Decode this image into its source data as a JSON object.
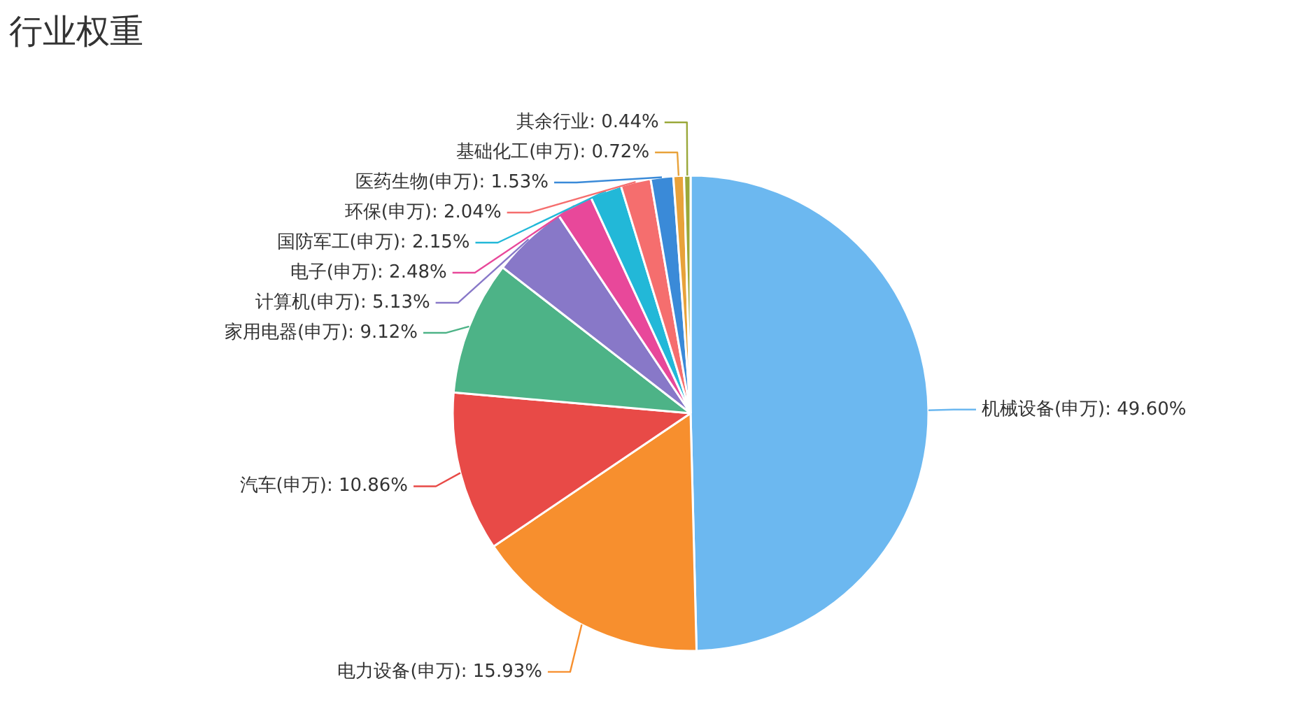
{
  "chart_data": {
    "type": "pie",
    "title": "行业权重",
    "categories": [
      "机械设备(申万)",
      "电力设备(申万)",
      "汽车(申万)",
      "家用电器(申万)",
      "计算机(申万)",
      "电子(申万)",
      "国防军工(申万)",
      "环保(申万)",
      "医药生物(申万)",
      "基础化工(申万)",
      "其余行业"
    ],
    "values": [
      49.6,
      15.93,
      10.86,
      9.12,
      5.13,
      2.48,
      2.15,
      2.04,
      1.53,
      0.72,
      0.44
    ],
    "value_labels": [
      "49.60%",
      "15.93%",
      "10.86%",
      "9.12%",
      "5.13%",
      "2.48%",
      "2.15%",
      "2.04%",
      "1.53%",
      "0.72%",
      "0.44%"
    ],
    "colors": [
      "#6cb8f0",
      "#f78f2e",
      "#e84a47",
      "#4db387",
      "#8878c8",
      "#e8489a",
      "#22b8d8",
      "#f56e6e",
      "#3a8ad8",
      "#e8a23a",
      "#9aa83a"
    ]
  }
}
